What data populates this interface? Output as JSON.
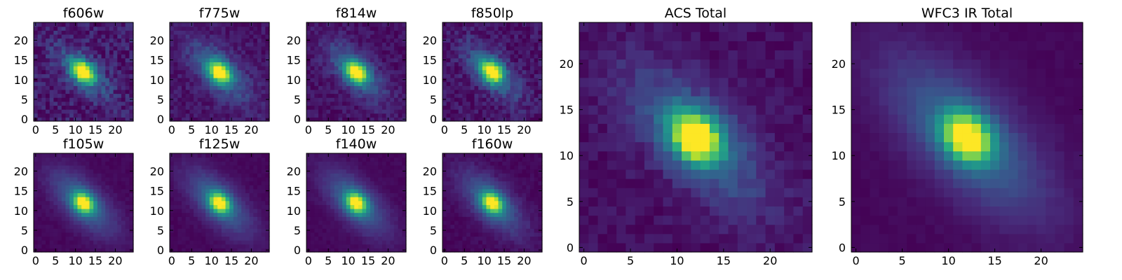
{
  "chart_data": [
    {
      "type": "heatmap",
      "title": "f606w",
      "xticks": [
        0,
        5,
        10,
        15,
        20
      ],
      "yticks": [
        0,
        5,
        10,
        15,
        20
      ],
      "xlim": [
        -0.5,
        24.5
      ],
      "ylim": [
        -0.5,
        24.5
      ],
      "grid": false,
      "grid_size": [
        25,
        25
      ],
      "colormap": "viridis",
      "peak": [
        12,
        12
      ],
      "elongation": "diagonal-upper-left-to-lower-right"
    },
    {
      "type": "heatmap",
      "title": "f775w",
      "xticks": [
        0,
        5,
        10,
        15,
        20
      ],
      "yticks": [
        0,
        5,
        10,
        15,
        20
      ],
      "xlim": [
        -0.5,
        24.5
      ],
      "ylim": [
        -0.5,
        24.5
      ],
      "grid": false,
      "grid_size": [
        25,
        25
      ],
      "colormap": "viridis",
      "peak": [
        12,
        12
      ],
      "elongation": "diagonal-upper-left-to-lower-right"
    },
    {
      "type": "heatmap",
      "title": "f814w",
      "xticks": [
        0,
        5,
        10,
        15,
        20
      ],
      "yticks": [
        0,
        5,
        10,
        15,
        20
      ],
      "xlim": [
        -0.5,
        24.5
      ],
      "ylim": [
        -0.5,
        24.5
      ],
      "grid": false,
      "grid_size": [
        25,
        25
      ],
      "colormap": "viridis",
      "peak": [
        12,
        12
      ],
      "elongation": "diagonal-upper-left-to-lower-right"
    },
    {
      "type": "heatmap",
      "title": "f850lp",
      "xticks": [
        0,
        5,
        10,
        15,
        20
      ],
      "yticks": [
        0,
        5,
        10,
        15,
        20
      ],
      "xlim": [
        -0.5,
        24.5
      ],
      "ylim": [
        -0.5,
        24.5
      ],
      "grid": false,
      "grid_size": [
        25,
        25
      ],
      "colormap": "viridis",
      "peak": [
        12,
        12
      ],
      "elongation": "diagonal-upper-left-to-lower-right"
    },
    {
      "type": "heatmap",
      "title": "f105w",
      "xticks": [
        0,
        5,
        10,
        15,
        20
      ],
      "yticks": [
        0,
        5,
        10,
        15,
        20
      ],
      "xlim": [
        -0.5,
        24.5
      ],
      "ylim": [
        -0.5,
        24.5
      ],
      "grid": false,
      "grid_size": [
        25,
        25
      ],
      "colormap": "viridis",
      "peak": [
        12,
        12
      ],
      "elongation": "diagonal-upper-left-to-lower-right"
    },
    {
      "type": "heatmap",
      "title": "f125w",
      "xticks": [
        0,
        5,
        10,
        15,
        20
      ],
      "yticks": [
        0,
        5,
        10,
        15,
        20
      ],
      "xlim": [
        -0.5,
        24.5
      ],
      "ylim": [
        -0.5,
        24.5
      ],
      "grid": false,
      "grid_size": [
        25,
        25
      ],
      "colormap": "viridis",
      "peak": [
        12,
        12
      ],
      "elongation": "diagonal-upper-left-to-lower-right"
    },
    {
      "type": "heatmap",
      "title": "f140w",
      "xticks": [
        0,
        5,
        10,
        15,
        20
      ],
      "yticks": [
        0,
        5,
        10,
        15,
        20
      ],
      "xlim": [
        -0.5,
        24.5
      ],
      "ylim": [
        -0.5,
        24.5
      ],
      "grid": false,
      "grid_size": [
        25,
        25
      ],
      "colormap": "viridis",
      "peak": [
        12,
        12
      ],
      "elongation": "diagonal-upper-left-to-lower-right"
    },
    {
      "type": "heatmap",
      "title": "f160w",
      "xticks": [
        0,
        5,
        10,
        15,
        20
      ],
      "yticks": [
        0,
        5,
        10,
        15,
        20
      ],
      "xlim": [
        -0.5,
        24.5
      ],
      "ylim": [
        -0.5,
        24.5
      ],
      "grid": false,
      "grid_size": [
        25,
        25
      ],
      "colormap": "viridis",
      "peak": [
        12,
        12
      ],
      "elongation": "diagonal-upper-left-to-lower-right"
    },
    {
      "type": "heatmap",
      "title": "ACS Total",
      "xticks": [
        0,
        5,
        10,
        15,
        20
      ],
      "yticks": [
        0,
        5,
        10,
        15,
        20
      ],
      "xlim": [
        -0.5,
        24.5
      ],
      "ylim": [
        -0.5,
        24.5
      ],
      "grid": false,
      "grid_size": [
        25,
        25
      ],
      "colormap": "viridis",
      "peak": [
        12,
        12
      ],
      "elongation": "diagonal-upper-left-to-lower-right"
    },
    {
      "type": "heatmap",
      "title": "WFC3 IR Total",
      "xticks": [
        0,
        5,
        10,
        15,
        20
      ],
      "yticks": [
        0,
        5,
        10,
        15,
        20
      ],
      "xlim": [
        -0.5,
        24.5
      ],
      "ylim": [
        -0.5,
        24.5
      ],
      "grid": false,
      "grid_size": [
        25,
        25
      ],
      "colormap": "viridis",
      "peak": [
        12,
        12
      ],
      "elongation": "diagonal-upper-left-to-lower-right"
    }
  ]
}
